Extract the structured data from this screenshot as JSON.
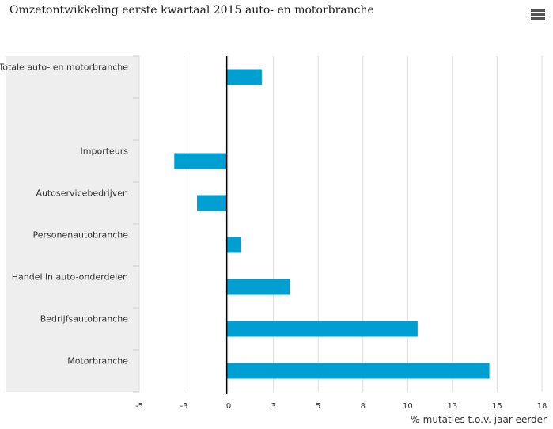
{
  "header": {
    "title": "Omzetontwikkeling eerste kwartaal 2015 auto- en motorbranche"
  },
  "toolbar": {
    "menu_icon": "hamburger-menu-icon"
  },
  "chart_data": {
    "type": "bar",
    "orientation": "horizontal",
    "categories": [
      "Totale auto- en motorbranche",
      "",
      "Importeurs",
      "Autoservicebedrijven",
      "Personenautobranche",
      "Handel in auto-onderdelen",
      "Bedrijfsautobranche",
      "Motorbranche"
    ],
    "values": [
      2.0,
      null,
      -3.0,
      -1.7,
      0.8,
      3.6,
      10.9,
      15.0
    ],
    "xlabel": "%-mutaties t.o.v. jaar eerder",
    "ylabel": "",
    "xlim": [
      -5,
      18
    ],
    "xticks": [
      "-5",
      "-3",
      "0",
      "3",
      "5",
      "8",
      "10",
      "13",
      "15",
      "18"
    ],
    "grid": true,
    "legend": "none",
    "colors": {
      "bar": "#009fd1",
      "category_band": "#eeeeee",
      "grid": "#dddddd",
      "zero_line": "#000000",
      "text": "#333333"
    }
  }
}
